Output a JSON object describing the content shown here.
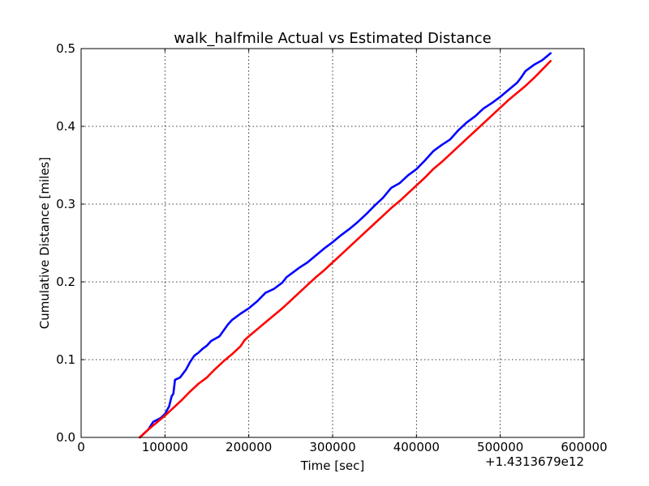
{
  "chart_data": {
    "type": "line",
    "title": "walk_halfmile Actual vs Estimated Distance",
    "xlabel": "Time [sec]",
    "ylabel": "Cumulative Distance [miles]",
    "x_offset_label": "+1.4313679e12",
    "xlim": [
      0,
      600000
    ],
    "ylim": [
      0,
      0.5
    ],
    "x_ticks": [
      0,
      100000,
      200000,
      300000,
      400000,
      500000,
      600000
    ],
    "x_tick_labels": [
      "0",
      "100000",
      "200000",
      "300000",
      "400000",
      "500000",
      "600000"
    ],
    "y_ticks": [
      0,
      0.1,
      0.2,
      0.3,
      0.4,
      0.5
    ],
    "y_tick_labels": [
      "0.0",
      "0.1",
      "0.2",
      "0.3",
      "0.4",
      "0.5"
    ],
    "grid": true,
    "legend": "none",
    "series": [
      {
        "color": "#0000ff",
        "x": [
          70000,
          80000,
          86000,
          95000,
          100000,
          105000,
          108000,
          110000,
          112000,
          118000,
          125000,
          130000,
          135000,
          140000,
          145000,
          150000,
          155000,
          165000,
          175000,
          180000,
          190000,
          200000,
          210000,
          220000,
          230000,
          240000,
          245000,
          250000,
          260000,
          270000,
          280000,
          290000,
          300000,
          310000,
          320000,
          330000,
          340000,
          350000,
          360000,
          370000,
          375000,
          380000,
          390000,
          400000,
          410000,
          420000,
          425000,
          430000,
          440000,
          450000,
          460000,
          470000,
          480000,
          490000,
          500000,
          510000,
          520000,
          525000,
          530000,
          540000,
          550000,
          560000
        ],
        "y": [
          0.0,
          0.01,
          0.02,
          0.025,
          0.03,
          0.04,
          0.053,
          0.056,
          0.074,
          0.077,
          0.087,
          0.097,
          0.105,
          0.109,
          0.114,
          0.118,
          0.124,
          0.13,
          0.145,
          0.151,
          0.159,
          0.166,
          0.175,
          0.186,
          0.191,
          0.199,
          0.206,
          0.21,
          0.218,
          0.225,
          0.234,
          0.243,
          0.251,
          0.26,
          0.268,
          0.277,
          0.287,
          0.298,
          0.308,
          0.321,
          0.324,
          0.327,
          0.337,
          0.345,
          0.356,
          0.368,
          0.372,
          0.376,
          0.383,
          0.395,
          0.405,
          0.413,
          0.423,
          0.43,
          0.438,
          0.447,
          0.456,
          0.463,
          0.471,
          0.479,
          0.485,
          0.494
        ]
      },
      {
        "color": "#ff0000",
        "x": [
          70000,
          80000,
          90000,
          100000,
          110000,
          120000,
          130000,
          140000,
          150000,
          160000,
          170000,
          180000,
          190000,
          195000,
          200000,
          210000,
          220000,
          230000,
          240000,
          250000,
          260000,
          270000,
          280000,
          290000,
          300000,
          310000,
          320000,
          330000,
          340000,
          350000,
          360000,
          370000,
          380000,
          390000,
          400000,
          410000,
          420000,
          430000,
          440000,
          450000,
          460000,
          470000,
          480000,
          490000,
          500000,
          510000,
          520000,
          530000,
          540000,
          550000,
          560000
        ],
        "y": [
          0.0,
          0.01,
          0.019,
          0.028,
          0.038,
          0.048,
          0.059,
          0.069,
          0.077,
          0.088,
          0.098,
          0.107,
          0.117,
          0.125,
          0.13,
          0.139,
          0.148,
          0.157,
          0.166,
          0.176,
          0.186,
          0.196,
          0.206,
          0.215,
          0.225,
          0.235,
          0.245,
          0.255,
          0.265,
          0.275,
          0.285,
          0.295,
          0.304,
          0.314,
          0.324,
          0.334,
          0.345,
          0.354,
          0.364,
          0.374,
          0.384,
          0.394,
          0.404,
          0.414,
          0.424,
          0.434,
          0.443,
          0.452,
          0.462,
          0.473,
          0.484
        ]
      }
    ]
  }
}
